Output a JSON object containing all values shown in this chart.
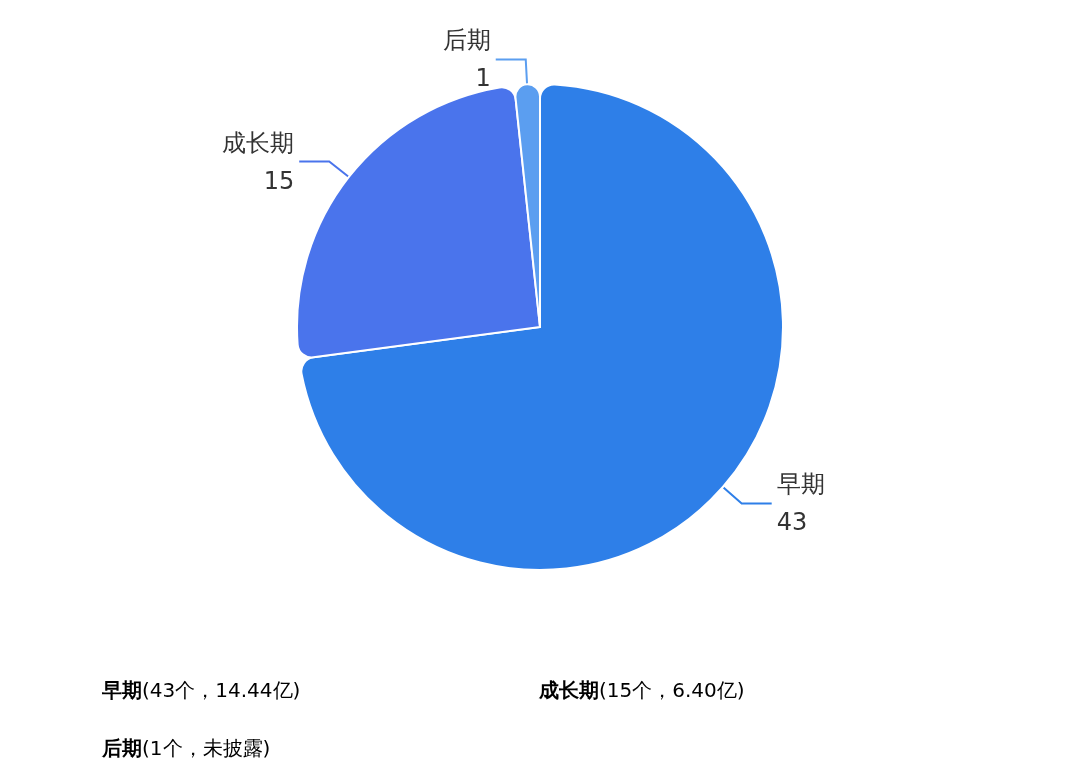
{
  "chart_data": {
    "type": "pie",
    "categories": [
      "早期",
      "成长期",
      "后期"
    ],
    "values": [
      43,
      15,
      1
    ],
    "colors": [
      "#2e7fe8",
      "#4a74ec",
      "#5b9ef0"
    ],
    "data_labels": true,
    "legend": false,
    "annotations": [
      "早期(43个，14.44亿)",
      "成长期(15个，6.40亿)",
      "后期(1个，未披露)"
    ]
  }
}
